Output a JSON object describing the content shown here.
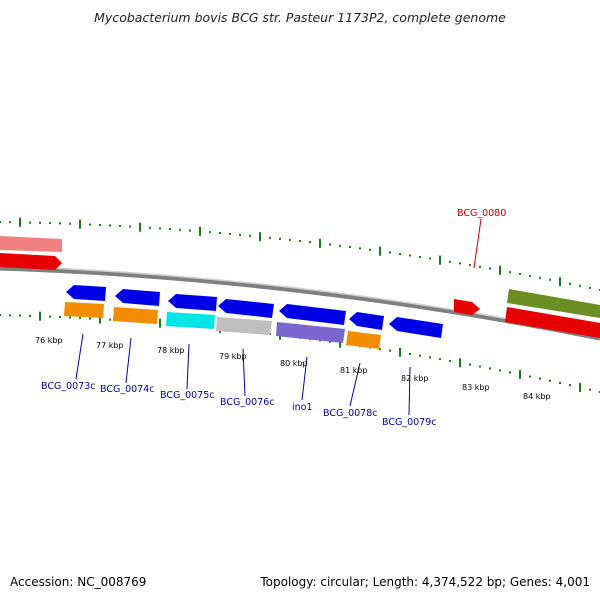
{
  "title": "Mycobacterium bovis BCG str. Pasteur 1173P2, complete genome",
  "footer": {
    "accession": "Accession: NC_008769",
    "summary": "Topology: circular; Length: 4,374,522 bp; Genes: 4,001"
  },
  "kbp_labels": [
    "76 kbp",
    "77 kbp",
    "78 kbp",
    "79 kbp",
    "80 kbp",
    "81 kbp",
    "82 kbp",
    "83 kbp",
    "84 kbp"
  ],
  "gene_labels": [
    {
      "text": "BCG_0080",
      "color": "#cc0000",
      "strand": "forward"
    },
    {
      "text": "BCG_0073c",
      "color": "#0000aa",
      "strand": "reverse"
    },
    {
      "text": "BCG_0074c",
      "color": "#0000aa",
      "strand": "reverse"
    },
    {
      "text": "BCG_0075c",
      "color": "#0000aa",
      "strand": "reverse"
    },
    {
      "text": "BCG_0076c",
      "color": "#0000aa",
      "strand": "reverse"
    },
    {
      "text": "ino1",
      "color": "#0000aa",
      "strand": "reverse"
    },
    {
      "text": "BCG_0078c",
      "color": "#0000aa",
      "strand": "reverse"
    },
    {
      "text": "BCG_0079c",
      "color": "#0000aa",
      "strand": "reverse"
    }
  ],
  "colors": {
    "backbone": "#7f7f7f",
    "tick": "#1a7a1a",
    "cds_reverse": "#0000e6",
    "cds_forward": "#e60000",
    "gene_orange": "#f28c00",
    "gene_cyan": "#00e6e6",
    "gene_gray": "#bfbfbf",
    "gene_purple": "#7a66cc",
    "gene_pink": "#f08080",
    "gene_olive": "#6b8e23"
  }
}
